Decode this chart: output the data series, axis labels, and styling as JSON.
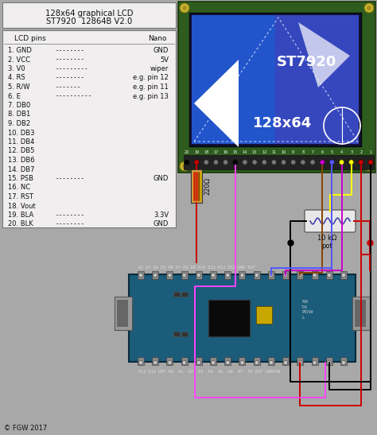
{
  "title_line1": "128x64 graphical LCD",
  "title_line2": "ST7920  12864B V2.0",
  "bg_color": "#a8a8a8",
  "info_box_color": "#f0eeee",
  "lcd_pcb_color": "#2d5c1e",
  "lcd_screen_outer": "#1a1a80",
  "lcd_screen_inner": "#2244cc",
  "credit": "© FGW 2017",
  "pin_lines": [
    [
      "1. GND",
      "--------",
      "GND"
    ],
    [
      "2. VCC",
      "--------",
      "5V"
    ],
    [
      "3. V0",
      "---------",
      "wiper"
    ],
    [
      "4. RS",
      "--------",
      "e.g. pin 12"
    ],
    [
      "5. R/W",
      "-------",
      "e.g. pin 11"
    ],
    [
      "6. E",
      "----------",
      "e.g. pin 13"
    ],
    [
      "7. DB0",
      "",
      ""
    ],
    [
      "8. DB1",
      "",
      ""
    ],
    [
      "9. DB2",
      "",
      ""
    ],
    [
      "10. DB3",
      "",
      ""
    ],
    [
      "11. DB4",
      "",
      ""
    ],
    [
      "12. DB5",
      "",
      ""
    ],
    [
      "13. DB6",
      "",
      ""
    ],
    [
      "14. DB7",
      "",
      ""
    ],
    [
      "15. PSB",
      "--------",
      "GND"
    ],
    [
      "16. NC",
      "",
      ""
    ],
    [
      "17. RST",
      "",
      ""
    ],
    [
      "18. Vout",
      "",
      ""
    ],
    [
      "19. BLA",
      "--------",
      "3.3V"
    ],
    [
      "20. BLK",
      "--------",
      "GND"
    ]
  ],
  "resistor_label": "220Ω",
  "pot_label": "10 kΩ\npot"
}
